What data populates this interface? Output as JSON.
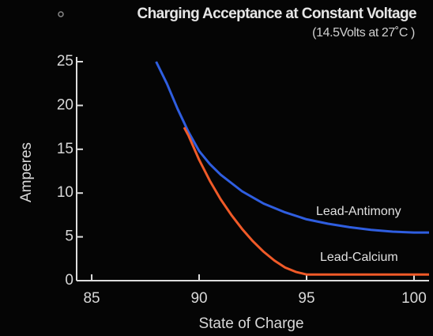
{
  "chart_data": {
    "type": "line",
    "title": "Charging Acceptance at Constant Voltage",
    "subtitle": "(14.5Volts at 27˚C )",
    "xlabel": "State of Charge",
    "ylabel": "Amperes",
    "xlim": [
      84.3,
      100.7
    ],
    "ylim": [
      0,
      25
    ],
    "xticks": [
      85,
      90,
      95,
      100
    ],
    "yticks": [
      0,
      5,
      10,
      15,
      20,
      25
    ],
    "series": [
      {
        "name": "Lead-Antimony",
        "color": "#2f5ee0",
        "x": [
          88,
          88.5,
          89,
          89.5,
          90,
          90.5,
          91,
          92,
          93,
          94,
          95,
          96,
          97,
          98,
          99,
          100,
          100.7
        ],
        "values": [
          25,
          22.5,
          19.6,
          17,
          14.8,
          13.3,
          12.1,
          10.2,
          8.8,
          7.8,
          7,
          6.5,
          6.1,
          5.8,
          5.6,
          5.5,
          5.5
        ]
      },
      {
        "name": "Lead-Calcium",
        "color": "#f05a28",
        "x": [
          89.3,
          89.5,
          90,
          90.5,
          91,
          91.5,
          92,
          92.5,
          93,
          93.5,
          94,
          94.5,
          95,
          96,
          97,
          98,
          99,
          100,
          100.7
        ],
        "values": [
          17.5,
          16.6,
          13.8,
          11.4,
          9.3,
          7.5,
          5.9,
          4.5,
          3.3,
          2.3,
          1.5,
          1,
          0.7,
          0.7,
          0.7,
          0.7,
          0.7,
          0.7,
          0.7
        ]
      }
    ]
  }
}
